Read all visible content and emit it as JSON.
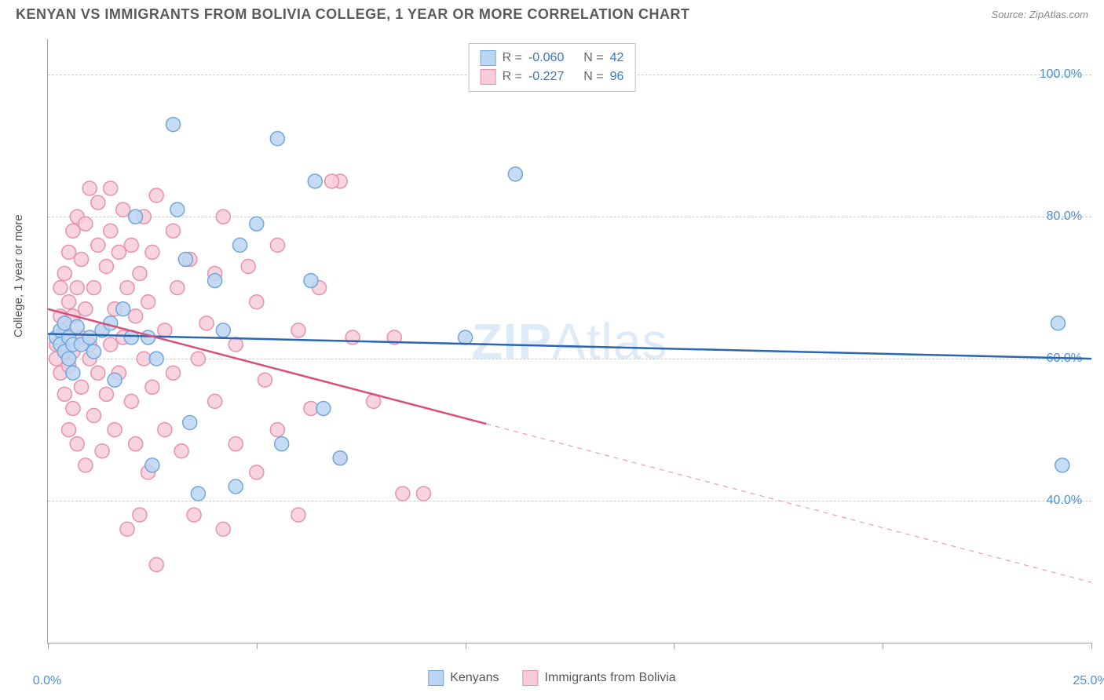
{
  "title": "KENYAN VS IMMIGRANTS FROM BOLIVIA COLLEGE, 1 YEAR OR MORE CORRELATION CHART",
  "source": "Source: ZipAtlas.com",
  "watermark_zip": "ZIP",
  "watermark_atlas": "Atlas",
  "y_axis_label": "College, 1 year or more",
  "chart": {
    "type": "scatter",
    "xlim": [
      0,
      25
    ],
    "ylim": [
      20,
      105
    ],
    "xticks": [
      0,
      5,
      10,
      15,
      20,
      25
    ],
    "xtick_labels": {
      "0": "0.0%",
      "25": "25.0%"
    },
    "yticks": [
      40,
      60,
      80,
      100
    ],
    "ytick_labels": {
      "40": "40.0%",
      "60": "60.0%",
      "80": "80.0%",
      "100": "100.0%"
    },
    "grid_color": "#cccccc",
    "background_color": "#ffffff",
    "marker_radius": 9,
    "marker_stroke_width": 1.5,
    "trend_line_width": 2.5,
    "series": [
      {
        "name": "Kenyans",
        "fill": "#bcd6f2",
        "stroke": "#6fa8dc",
        "line_color": "#2a66b2",
        "R_label": "R =",
        "R": "-0.060",
        "N_label": "N =",
        "N": "42",
        "trend": {
          "x1": 0,
          "y1": 63.5,
          "x2": 25,
          "y2": 60.0,
          "solid_until_x": 25
        },
        "points": [
          [
            0.2,
            63
          ],
          [
            0.3,
            62
          ],
          [
            0.3,
            64
          ],
          [
            0.4,
            61
          ],
          [
            0.4,
            65
          ],
          [
            0.5,
            63
          ],
          [
            0.5,
            60
          ],
          [
            0.6,
            62
          ],
          [
            0.7,
            64.5
          ],
          [
            0.6,
            58
          ],
          [
            0.8,
            62
          ],
          [
            1.0,
            63
          ],
          [
            1.1,
            61
          ],
          [
            1.3,
            64
          ],
          [
            1.5,
            65
          ],
          [
            1.6,
            57
          ],
          [
            1.8,
            67
          ],
          [
            2.0,
            63
          ],
          [
            2.1,
            80
          ],
          [
            2.4,
            63
          ],
          [
            2.5,
            45
          ],
          [
            2.6,
            60
          ],
          [
            3.0,
            93
          ],
          [
            3.1,
            81
          ],
          [
            3.3,
            74
          ],
          [
            3.4,
            51
          ],
          [
            3.6,
            41
          ],
          [
            4.0,
            71
          ],
          [
            4.2,
            64
          ],
          [
            4.6,
            76
          ],
          [
            4.5,
            42
          ],
          [
            5.0,
            79
          ],
          [
            5.5,
            91
          ],
          [
            5.6,
            48
          ],
          [
            6.3,
            71
          ],
          [
            6.4,
            85
          ],
          [
            6.6,
            53
          ],
          [
            7.0,
            46
          ],
          [
            10.0,
            63
          ],
          [
            11.2,
            86
          ],
          [
            24.2,
            65
          ],
          [
            24.3,
            45
          ]
        ]
      },
      {
        "name": "Immigrants from Bolivia",
        "fill": "#f7cddb",
        "stroke": "#e890ae",
        "line_color": "#d94f7a",
        "R_label": "R =",
        "R": "-0.227",
        "N_label": "N =",
        "N": "96",
        "trend": {
          "x1": 0,
          "y1": 67.0,
          "x2": 25,
          "y2": 28.5,
          "solid_until_x": 10.5
        },
        "points": [
          [
            0.2,
            62
          ],
          [
            0.2,
            60
          ],
          [
            0.3,
            58
          ],
          [
            0.3,
            66
          ],
          [
            0.3,
            70
          ],
          [
            0.4,
            64
          ],
          [
            0.4,
            55
          ],
          [
            0.4,
            72
          ],
          [
            0.5,
            68
          ],
          [
            0.5,
            75
          ],
          [
            0.5,
            50
          ],
          [
            0.5,
            59
          ],
          [
            0.6,
            61
          ],
          [
            0.6,
            78
          ],
          [
            0.6,
            53
          ],
          [
            0.6,
            66
          ],
          [
            0.7,
            70
          ],
          [
            0.7,
            80
          ],
          [
            0.7,
            48
          ],
          [
            0.8,
            63
          ],
          [
            0.8,
            74
          ],
          [
            0.8,
            56
          ],
          [
            0.9,
            67
          ],
          [
            0.9,
            79
          ],
          [
            0.9,
            45
          ],
          [
            1.0,
            60
          ],
          [
            1.0,
            84
          ],
          [
            1.0,
            62
          ],
          [
            1.1,
            70
          ],
          [
            1.1,
            52
          ],
          [
            1.2,
            76
          ],
          [
            1.2,
            58
          ],
          [
            1.2,
            82
          ],
          [
            1.3,
            64
          ],
          [
            1.3,
            47
          ],
          [
            1.4,
            73
          ],
          [
            1.4,
            55
          ],
          [
            1.5,
            78
          ],
          [
            1.5,
            62
          ],
          [
            1.5,
            84
          ],
          [
            1.6,
            67
          ],
          [
            1.6,
            50
          ],
          [
            1.7,
            75
          ],
          [
            1.7,
            58
          ],
          [
            1.8,
            81
          ],
          [
            1.8,
            63
          ],
          [
            1.9,
            70
          ],
          [
            1.9,
            36
          ],
          [
            2.0,
            54
          ],
          [
            2.0,
            76
          ],
          [
            2.1,
            48
          ],
          [
            2.1,
            66
          ],
          [
            2.2,
            72
          ],
          [
            2.2,
            38
          ],
          [
            2.3,
            60
          ],
          [
            2.3,
            80
          ],
          [
            2.4,
            68
          ],
          [
            2.4,
            44
          ],
          [
            2.5,
            75
          ],
          [
            2.5,
            56
          ],
          [
            2.6,
            31
          ],
          [
            2.6,
            83
          ],
          [
            2.8,
            64
          ],
          [
            2.8,
            50
          ],
          [
            3.0,
            78
          ],
          [
            3.0,
            58
          ],
          [
            3.1,
            70
          ],
          [
            3.2,
            47
          ],
          [
            3.4,
            74
          ],
          [
            3.5,
            38
          ],
          [
            3.6,
            60
          ],
          [
            3.8,
            65
          ],
          [
            4.0,
            54
          ],
          [
            4.0,
            72
          ],
          [
            4.2,
            36
          ],
          [
            4.2,
            80
          ],
          [
            4.5,
            48
          ],
          [
            4.5,
            62
          ],
          [
            4.8,
            73
          ],
          [
            5.0,
            44
          ],
          [
            5.0,
            68
          ],
          [
            5.2,
            57
          ],
          [
            5.5,
            50
          ],
          [
            5.5,
            76
          ],
          [
            6.0,
            38
          ],
          [
            6.0,
            64
          ],
          [
            6.3,
            53
          ],
          [
            6.5,
            70
          ],
          [
            7.0,
            46
          ],
          [
            7.0,
            85
          ],
          [
            7.3,
            63
          ],
          [
            7.8,
            54
          ],
          [
            8.3,
            63
          ],
          [
            8.5,
            41
          ],
          [
            9.0,
            41
          ],
          [
            6.8,
            85
          ]
        ]
      }
    ]
  },
  "bottom_legend": [
    {
      "label": "Kenyans",
      "fill": "#bcd6f2",
      "stroke": "#6fa8dc"
    },
    {
      "label": "Immigrants from Bolivia",
      "fill": "#f7cddb",
      "stroke": "#e890ae"
    }
  ]
}
